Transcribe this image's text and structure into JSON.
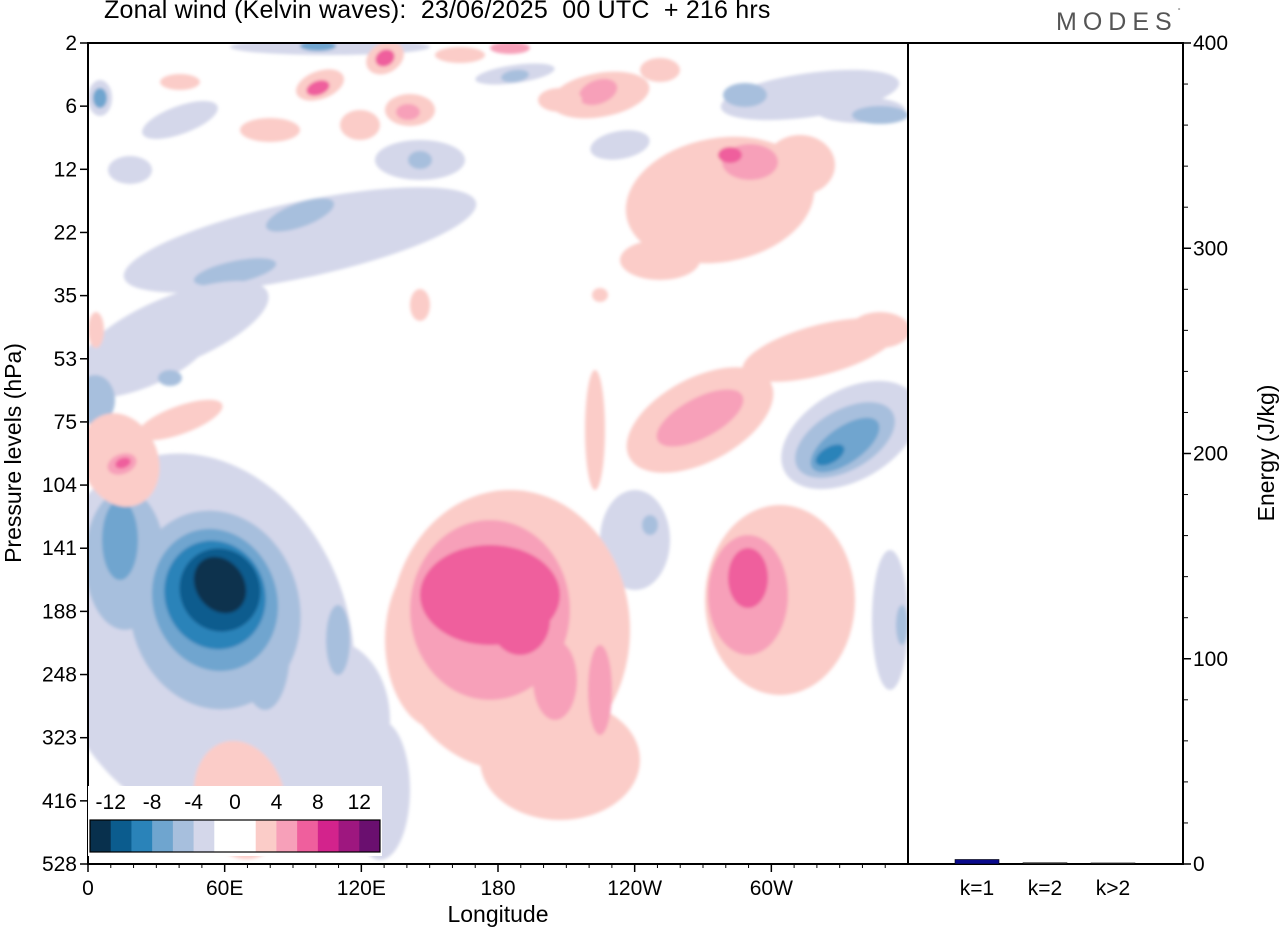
{
  "title": "Zonal wind (Kelvin waves):  23/06/2025  00 UTC  + 216 hrs",
  "logo": {
    "text": "MODES",
    "mark": "°"
  },
  "chart_data": [
    {
      "type": "heatmap",
      "variable": "Zonal wind (Kelvin waves)",
      "xlabel": "Longitude",
      "ylabel": "Pressure levels (hPa)",
      "x_ticks": [
        "0",
        "60E",
        "120E",
        "180",
        "120W",
        "60W"
      ],
      "x_tick_degrees": [
        0,
        60,
        120,
        180,
        240,
        300
      ],
      "xlim": [
        0,
        360
      ],
      "y_levels_hPa": [
        "2",
        "6",
        "12",
        "22",
        "35",
        "53",
        "75",
        "104",
        "141",
        "188",
        "248",
        "323",
        "416",
        "528"
      ],
      "y_scale": "level-index (top = 2 hPa, bottom = 528 hPa)",
      "colorbar": {
        "tick_labels": [
          "-12",
          "-8",
          "-4",
          "0",
          "4",
          "8",
          "12"
        ],
        "bounds": [
          -14,
          -12,
          -10,
          -8,
          -6,
          -4,
          -2,
          0,
          2,
          4,
          6,
          8,
          10,
          12,
          14
        ],
        "colors": [
          "#08304d",
          "#0b5c8e",
          "#2a83b9",
          "#6fa5cf",
          "#a7bfdd",
          "#d4d7ea",
          "#ffffff",
          "#ffffff",
          "#fbccc8",
          "#f7a0b9",
          "#ef5f9d",
          "#d3238c",
          "#9e177f",
          "#6a0f6f"
        ]
      },
      "features": [
        {
          "name": "upper-troposphere easterly maximum",
          "sign": "negative",
          "lon": 60,
          "level_hPa": 170,
          "peak": -13
        },
        {
          "name": "upper-troposphere westerly maximum",
          "sign": "positive",
          "lon": 175,
          "level_hPa": 180,
          "peak": 8
        },
        {
          "name": "westerly maximum near 60W",
          "sign": "positive",
          "lon": 290,
          "level_hPa": 165,
          "peak": 9
        },
        {
          "name": "descending easterly band near 100 hPa",
          "sign": "negative",
          "lon": 340,
          "level_hPa": 95,
          "peak": -8
        },
        {
          "name": "stratospheric westerly patch",
          "sign": "positive",
          "lon": 300,
          "level_hPa": 12,
          "peak": 6
        }
      ]
    },
    {
      "type": "bar",
      "ylabel": "Energy (J/kg)",
      "ylim": [
        0,
        400
      ],
      "y_ticks": [
        "0",
        "100",
        "200",
        "300",
        "400"
      ],
      "categories": [
        "k=1",
        "k=2",
        "k>2"
      ],
      "values": [
        2.2,
        0.6,
        0.5
      ],
      "bar_color": "#0a0a8c"
    }
  ]
}
